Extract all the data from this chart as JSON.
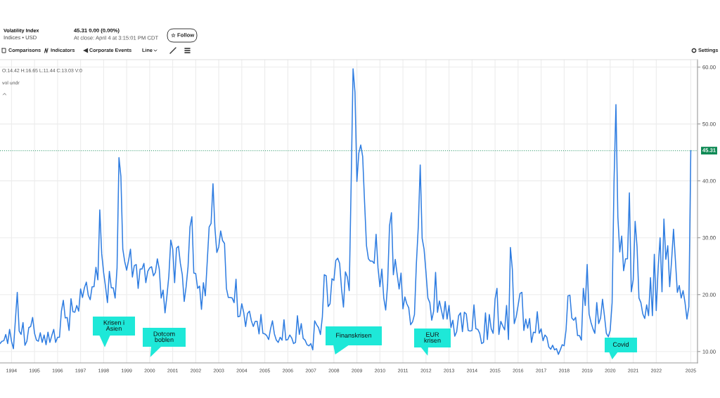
{
  "chart_data": {
    "type": "line",
    "title": "Volatility Index",
    "subtitle": "Indices • USD",
    "color": "#2f7de1",
    "categories": [
      null,
      null,
      null,
      null,
      null,
      null,
      "1994",
      null,
      null,
      null,
      null,
      null,
      null,
      null,
      null,
      null,
      null,
      null,
      "1995",
      null,
      null,
      null,
      null,
      null,
      null,
      null,
      null,
      null,
      null,
      null,
      "1996",
      null,
      null,
      null,
      null,
      null,
      null,
      null,
      null,
      null,
      null,
      null,
      "1997",
      null,
      null,
      null,
      null,
      null,
      null,
      null,
      null,
      null,
      null,
      null,
      "1998",
      null,
      null,
      null,
      null,
      null,
      null,
      null,
      null,
      null,
      null,
      null,
      "1999",
      null,
      null,
      null,
      null,
      null,
      null,
      null,
      null,
      null,
      null,
      null,
      "2000",
      null,
      null,
      null,
      null,
      null,
      null,
      null,
      null,
      null,
      null,
      null,
      "2001",
      null,
      null,
      null,
      null,
      null,
      null,
      null,
      null,
      null,
      null,
      null,
      "2002",
      null,
      null,
      null,
      null,
      null,
      null,
      null,
      null,
      null,
      null,
      null,
      "2003",
      null,
      null,
      null,
      null,
      null,
      null,
      null,
      null,
      null,
      null,
      null,
      "2004",
      null,
      null,
      null,
      null,
      null,
      null,
      null,
      null,
      null,
      null,
      null,
      "2005",
      null,
      null,
      null,
      null,
      null,
      null,
      null,
      null,
      null,
      null,
      null,
      "2006",
      null,
      null,
      null,
      null,
      null,
      null,
      null,
      null,
      null,
      null,
      null,
      "2007",
      null,
      null,
      null,
      null,
      null,
      null,
      null,
      null,
      null,
      null,
      null,
      "2008",
      null,
      null,
      null,
      null,
      null,
      null,
      null,
      null,
      null,
      null,
      null,
      "2009",
      null,
      null,
      null,
      null,
      null,
      null,
      null,
      null,
      null,
      null,
      null,
      "2010",
      null,
      null,
      null,
      null,
      null,
      null,
      null,
      null,
      null,
      null,
      null,
      "2011",
      null,
      null,
      null,
      null,
      null,
      null,
      null,
      null,
      null,
      null,
      null,
      "2012",
      null,
      null,
      null,
      null,
      null,
      null,
      null,
      null,
      null,
      null,
      null,
      "2013",
      null,
      null,
      null,
      null,
      null,
      null,
      null,
      null,
      null,
      null,
      null,
      "2014",
      null,
      null,
      null,
      null,
      null,
      null,
      null,
      null,
      null,
      null,
      null,
      "2015",
      null,
      null,
      null,
      null,
      null,
      null,
      null,
      null,
      null,
      null,
      null,
      "2016",
      null,
      null,
      null,
      null,
      null,
      null,
      null,
      null,
      null,
      null,
      null,
      "2017",
      null,
      null,
      null,
      null,
      null,
      null,
      null,
      null,
      null,
      null,
      null,
      "2018",
      null,
      null,
      null,
      null,
      null,
      null,
      null,
      null,
      null,
      null,
      null,
      "2019",
      null,
      null,
      null,
      null,
      null,
      null,
      null,
      null,
      null,
      null,
      null,
      "2020",
      null,
      null,
      null,
      null,
      null,
      null,
      null,
      null,
      null,
      null,
      null,
      "2021",
      null,
      null,
      null,
      null,
      null,
      null,
      null,
      null,
      null,
      null,
      null,
      "2022",
      null,
      null,
      null,
      null,
      null,
      null,
      null,
      null,
      null,
      null,
      null,
      null,
      null,
      null,
      null,
      null,
      null,
      "2025"
    ],
    "values": [
      11.4,
      11.8,
      11.9,
      13.0,
      11.4,
      13.9,
      11.8,
      10.5,
      15.4,
      20.4,
      13.6,
      13.0,
      15.1,
      11.1,
      11.8,
      14.2,
      14.4,
      16.0,
      13.2,
      12.0,
      11.8,
      13.3,
      11.6,
      12.9,
      11.2,
      13.4,
      11.6,
      12.8,
      13.9,
      11.6,
      12.5,
      12.5,
      17.1,
      19.0,
      15.9,
      16.0,
      13.7,
      19.3,
      17.0,
      16.9,
      18.1,
      17.1,
      21.0,
      19.5,
      21.2,
      22.2,
      19.9,
      19.1,
      21.4,
      21.4,
      24.8,
      22.6,
      34.9,
      27.2,
      23.9,
      21.4,
      18.6,
      24.1,
      21.2,
      21.2,
      19.4,
      24.7,
      44.1,
      40.8,
      28.0,
      25.8,
      24.3,
      26.0,
      28.0,
      23.1,
      25.1,
      25.3,
      21.1,
      24.5,
      24.5,
      25.5,
      22.1,
      24.1,
      24.7,
      24.9,
      23.3,
      23.9,
      26.3,
      24.5,
      19.4,
      20.8,
      16.8,
      19.8,
      23.3,
      29.6,
      28.0,
      22.1,
      28.2,
      28.5,
      25.5,
      23.5,
      18.8,
      21.4,
      24.9,
      31.9,
      33.7,
      23.8,
      23.7,
      21.1,
      21.5,
      17.4,
      22.1,
      19.8,
      25.8,
      31.9,
      32.5,
      39.5,
      31.7,
      27.4,
      28.4,
      31.2,
      29.5,
      29.0,
      21.1,
      19.5,
      19.5,
      19.4,
      18.6,
      22.7,
      16.1,
      16.2,
      18.4,
      16.9,
      14.4,
      16.7,
      17.1,
      15.4,
      14.4,
      15.3,
      15.3,
      13.1,
      16.5,
      13.2,
      13.1,
      12.8,
      12.1,
      14.0,
      15.4,
      13.1,
      12.0,
      11.6,
      12.5,
      12.0,
      15.6,
      12.0,
      12.1,
      12.9,
      12.4,
      11.4,
      11.6,
      16.3,
      13.0,
      14.9,
      12.3,
      12.0,
      11.2,
      11.0,
      11.4,
      10.3,
      15.4,
      14.7,
      14.2,
      13.0,
      16.1,
      23.5,
      23.3,
      17.9,
      18.4,
      22.8,
      22.5,
      26.0,
      26.4,
      25.5,
      21.0,
      17.8,
      24.0,
      23.1,
      20.7,
      39.4,
      59.7,
      55.6,
      39.9,
      44.9,
      46.3,
      44.3,
      36.2,
      28.6,
      26.3,
      25.9,
      25.9,
      25.5,
      30.6,
      24.7,
      21.4,
      24.5,
      19.4,
      17.3,
      21.8,
      32.1,
      34.4,
      23.5,
      26.2,
      23.5,
      21.0,
      23.8,
      17.5,
      19.6,
      18.4,
      17.7,
      14.7,
      15.2,
      16.5,
      25.5,
      32.0,
      42.8,
      29.9,
      28.0,
      23.9,
      19.4,
      18.6,
      15.5,
      17.1,
      23.9,
      16.9,
      18.9,
      17.3,
      15.7,
      18.8,
      15.7,
      18.1,
      14.2,
      15.5,
      12.7,
      13.5,
      16.3,
      16.8,
      13.5,
      16.9,
      16.6,
      13.7,
      13.6,
      13.7,
      18.2,
      14.0,
      13.9,
      13.2,
      11.4,
      11.6,
      16.8,
      12.1,
      16.5,
      14.0,
      13.2,
      19.2,
      21.1,
      13.0,
      15.3,
      14.5,
      13.8,
      18.1,
      12.1,
      28.3,
      24.5,
      14.9,
      16.1,
      18.1,
      20.2,
      20.4,
      13.7,
      15.7,
      14.1,
      15.8,
      11.6,
      13.4,
      13.3,
      17.0,
      13.2,
      14.0,
      11.9,
      12.9,
      12.5,
      10.8,
      10.4,
      11.1,
      10.3,
      10.5,
      9.5,
      10.3,
      11.2,
      11.0,
      13.8,
      19.8,
      19.9,
      15.9,
      15.5,
      16.0,
      12.8,
      12.8,
      12.0,
      21.1,
      18.1,
      25.3,
      16.6,
      15.1,
      14.0,
      13.2,
      18.6,
      14.9,
      15.9,
      19.2,
      16.3,
      13.2,
      12.6,
      13.7,
      18.6,
      39.9,
      53.4,
      33.6,
      27.5,
      30.3,
      24.2,
      26.3,
      26.3,
      37.9,
      20.5,
      22.6,
      32.9,
      28.4,
      19.4,
      18.6,
      16.6,
      15.8,
      18.2,
      16.3,
      23.0,
      16.3,
      27.1,
      17.2,
      24.7,
      30.0,
      20.5,
      33.3,
      26.2,
      28.6,
      21.4,
      26.0,
      31.5,
      26.0,
      20.4,
      21.6,
      19.4,
      20.7,
      18.6,
      15.7,
      17.9,
      45.31
    ],
    "ylim": [
      8,
      61.3
    ],
    "yticks": [
      {
        "value": 10,
        "label": "10.00"
      },
      {
        "value": 20,
        "label": "20.00"
      },
      {
        "value": 30,
        "label": "30.00"
      },
      {
        "value": 40,
        "label": "40.00"
      },
      {
        "value": 50,
        "label": "50.00"
      },
      {
        "value": 60,
        "label": "60.00"
      }
    ],
    "grid": true,
    "ref_lines": [
      {
        "axis": "y",
        "value": 45.31,
        "label": "45.31",
        "color": "#0f8a55",
        "line_style": "dotted"
      }
    ],
    "annotations": [
      "45.31 0.00 (0.00%)",
      "At close: April 4 at 3:15:01 PM CDT",
      "Follow",
      "Comparisons",
      "Indicators",
      "Corporate Events",
      "Line",
      "Settings",
      "O:14.42 H:16.65 L:11.44 C:13.03 V:0",
      "vol undr",
      "Krisen i\nAsien",
      "Dotcom\nboblen",
      "Finanskrisen",
      "EUR\nkrisen",
      "Covid"
    ]
  }
}
